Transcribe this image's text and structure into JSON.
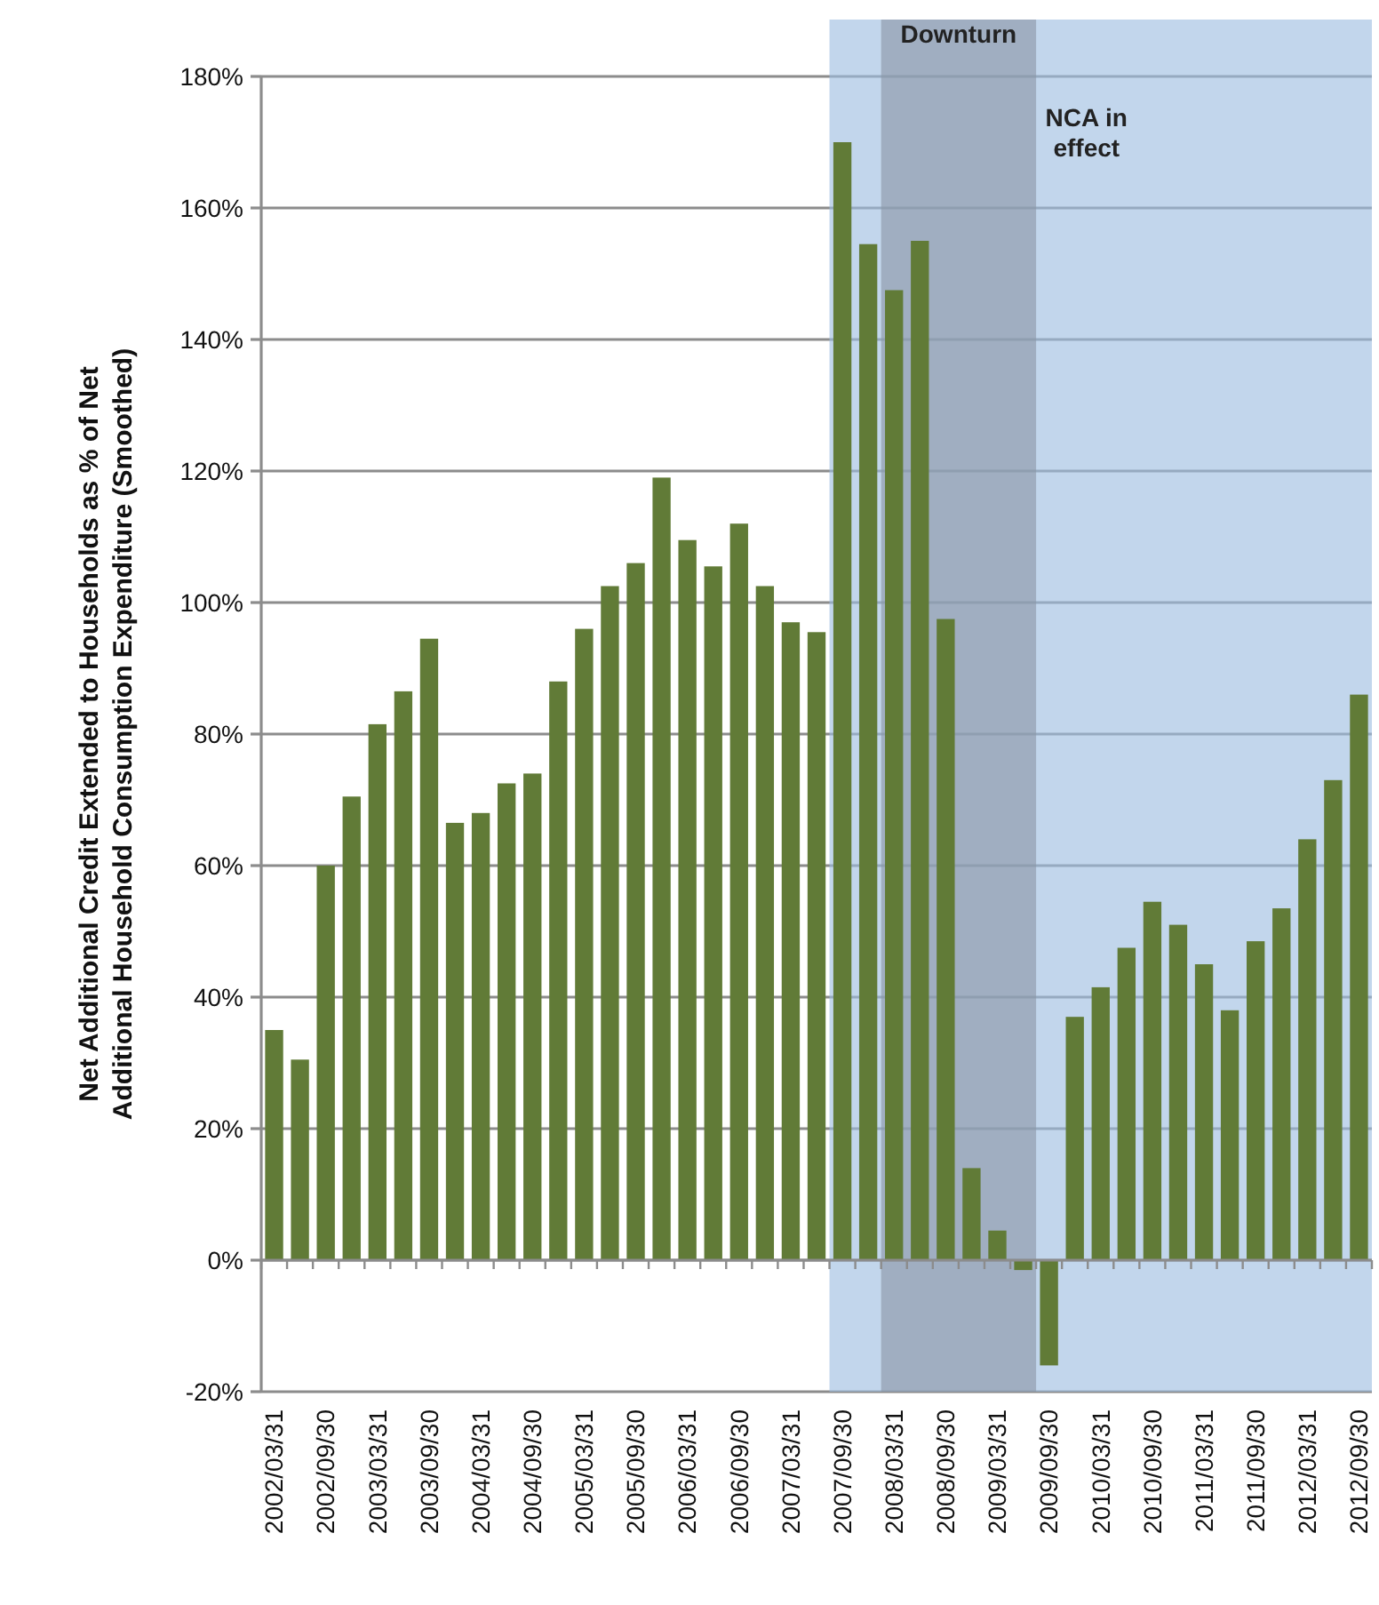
{
  "chart_data": {
    "type": "bar",
    "ylabel": "Net Additional Credit Extended to Households as % of Net Additional Household Consumption Expenditure (Smoothed)",
    "categories": [
      "2002/03/31",
      null,
      "2002/09/30",
      null,
      "2003/03/31",
      null,
      "2003/09/30",
      null,
      "2004/03/31",
      null,
      "2004/09/30",
      null,
      "2005/03/31",
      null,
      "2005/09/30",
      null,
      "2006/03/31",
      null,
      "2006/09/30",
      null,
      "2007/03/31",
      null,
      "2007/09/30",
      null,
      "2008/03/31",
      null,
      "2008/09/30",
      null,
      "2009/03/31",
      null,
      "2009/09/30",
      null,
      "2010/03/31",
      null,
      "2010/09/30",
      null,
      "2011/03/31",
      null,
      "2011/09/30",
      null,
      "2012/03/31",
      null,
      "2012/09/30"
    ],
    "values": [
      35,
      30.5,
      60,
      70.5,
      81.5,
      86.5,
      94.5,
      66.5,
      68,
      72.5,
      74,
      88,
      96,
      102.5,
      106,
      119,
      109.5,
      105.5,
      112,
      102.5,
      97,
      95.5,
      170,
      154.5,
      147.5,
      155,
      97.5,
      14,
      4.5,
      -1.5,
      -16,
      37,
      41.5,
      47.5,
      54.5,
      51,
      45,
      38,
      48.5,
      53.5,
      64,
      73,
      86
    ],
    "color": "#617b37",
    "ylim": [
      -20,
      180
    ],
    "yticks": [
      {
        "value": -20,
        "label": "-20%"
      },
      {
        "value": 0,
        "label": "0%"
      },
      {
        "value": 20,
        "label": "20%"
      },
      {
        "value": 40,
        "label": "40%"
      },
      {
        "value": 60,
        "label": "60%"
      },
      {
        "value": 80,
        "label": "80%"
      },
      {
        "value": 100,
        "label": "100%"
      },
      {
        "value": 120,
        "label": "120%"
      },
      {
        "value": 140,
        "label": "140%"
      },
      {
        "value": 160,
        "label": "160%"
      },
      {
        "value": 180,
        "label": "180%"
      }
    ],
    "grid": "y",
    "bands": [
      {
        "axis": "x",
        "from": "2007/09/30",
        "to": "2012/09/30",
        "label": "NCA in effect",
        "color": "#9dbde0"
      },
      {
        "axis": "x",
        "from": "2008/03/31",
        "to": "2009/09/30",
        "label": "Downturn",
        "color": "#8a96a6"
      }
    ]
  }
}
